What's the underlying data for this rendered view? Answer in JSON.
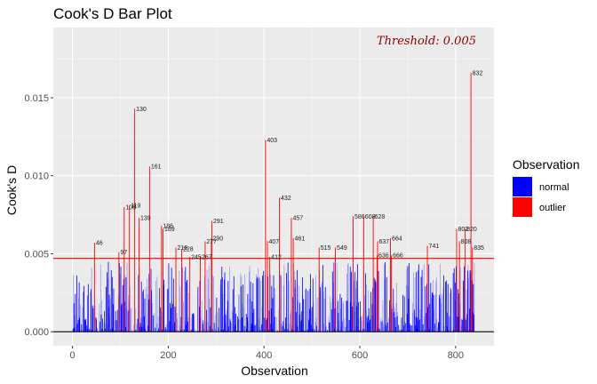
{
  "chart_data": {
    "type": "bar",
    "title": "Cook's D Bar Plot",
    "xlabel": "Observation",
    "ylabel": "Cook's D",
    "xlim": [
      -40,
      880
    ],
    "ylim": [
      -0.0009,
      0.0195
    ],
    "x_ticks": [
      0,
      200,
      400,
      600,
      800
    ],
    "y_ticks": [
      0.0,
      0.005,
      0.01,
      0.015
    ],
    "y_tick_labels": [
      "0.000",
      "0.005",
      "0.010",
      "0.015"
    ],
    "threshold": 0.0047,
    "threshold_label": "Threshold: 0.005",
    "threshold_color": "#8b0000",
    "grid": true,
    "legend": {
      "title": "Observation",
      "position": "right",
      "entries": [
        {
          "name": "normal",
          "color": "#0000ff"
        },
        {
          "name": "outlier",
          "color": "#ff0000"
        }
      ]
    },
    "outliers": [
      {
        "x": 46,
        "y": 0.0057,
        "label": "46"
      },
      {
        "x": 97,
        "y": 0.0051,
        "label": "97"
      },
      {
        "x": 108,
        "y": 0.008,
        "label": "108"
      },
      {
        "x": 119,
        "y": 0.0081,
        "label": "119"
      },
      {
        "x": 130,
        "y": 0.0143,
        "label": "130"
      },
      {
        "x": 139,
        "y": 0.0073,
        "label": "139"
      },
      {
        "x": 161,
        "y": 0.0106,
        "label": "161"
      },
      {
        "x": 186,
        "y": 0.0068,
        "label": "186"
      },
      {
        "x": 189,
        "y": 0.0066,
        "label": "189"
      },
      {
        "x": 216,
        "y": 0.0054,
        "label": "216"
      },
      {
        "x": 228,
        "y": 0.0053,
        "label": "228"
      },
      {
        "x": 245,
        "y": 0.0048,
        "label": "245"
      },
      {
        "x": 267,
        "y": 0.0048,
        "label": "267"
      },
      {
        "x": 277,
        "y": 0.0058,
        "label": "277"
      },
      {
        "x": 290,
        "y": 0.006,
        "label": "290"
      },
      {
        "x": 291,
        "y": 0.0071,
        "label": "291"
      },
      {
        "x": 403,
        "y": 0.0123,
        "label": "403"
      },
      {
        "x": 407,
        "y": 0.0058,
        "label": "407"
      },
      {
        "x": 412,
        "y": 0.0048,
        "label": "412"
      },
      {
        "x": 432,
        "y": 0.0086,
        "label": "432"
      },
      {
        "x": 457,
        "y": 0.0073,
        "label": "457"
      },
      {
        "x": 461,
        "y": 0.006,
        "label": "461"
      },
      {
        "x": 515,
        "y": 0.0054,
        "label": "515"
      },
      {
        "x": 549,
        "y": 0.0054,
        "label": "549"
      },
      {
        "x": 586,
        "y": 0.0074,
        "label": "586"
      },
      {
        "x": 608,
        "y": 0.0074,
        "label": "608"
      },
      {
        "x": 628,
        "y": 0.0074,
        "label": "628"
      },
      {
        "x": 636,
        "y": 0.0049,
        "label": "636"
      },
      {
        "x": 637,
        "y": 0.0058,
        "label": "637"
      },
      {
        "x": 664,
        "y": 0.006,
        "label": "664"
      },
      {
        "x": 666,
        "y": 0.0049,
        "label": "666"
      },
      {
        "x": 741,
        "y": 0.0055,
        "label": "741"
      },
      {
        "x": 808,
        "y": 0.0058,
        "label": "808"
      },
      {
        "x": 820,
        "y": 0.0066,
        "label": "820"
      },
      {
        "x": 832,
        "y": 0.0166,
        "label": "832"
      },
      {
        "x": 835,
        "y": 0.0054,
        "label": "835"
      },
      {
        "x": 802,
        "y": 0.0066,
        "label": "802"
      }
    ],
    "normal_range": {
      "n": 840,
      "max": 0.0045
    }
  }
}
